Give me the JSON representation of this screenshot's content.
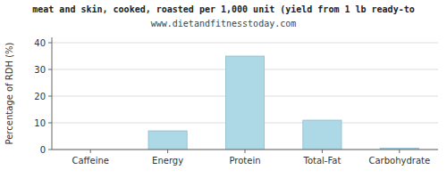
{
  "chart_data": {
    "type": "bar",
    "title": "meat and skin, cooked, roasted per 1,000 unit (yield from 1 lb ready-to",
    "subtitle": "www.dietandfitnesstoday.com",
    "ylabel": "Percentage of RDH (%)",
    "categories": [
      "Caffeine",
      "Energy",
      "Protein",
      "Total-Fat",
      "Carbohydrate"
    ],
    "values": [
      0,
      7,
      35,
      11,
      0.5
    ],
    "color": "#add8e6",
    "ylim": [
      0,
      42
    ],
    "yticks": [
      0,
      10,
      20,
      30,
      40
    ],
    "grid": true
  }
}
